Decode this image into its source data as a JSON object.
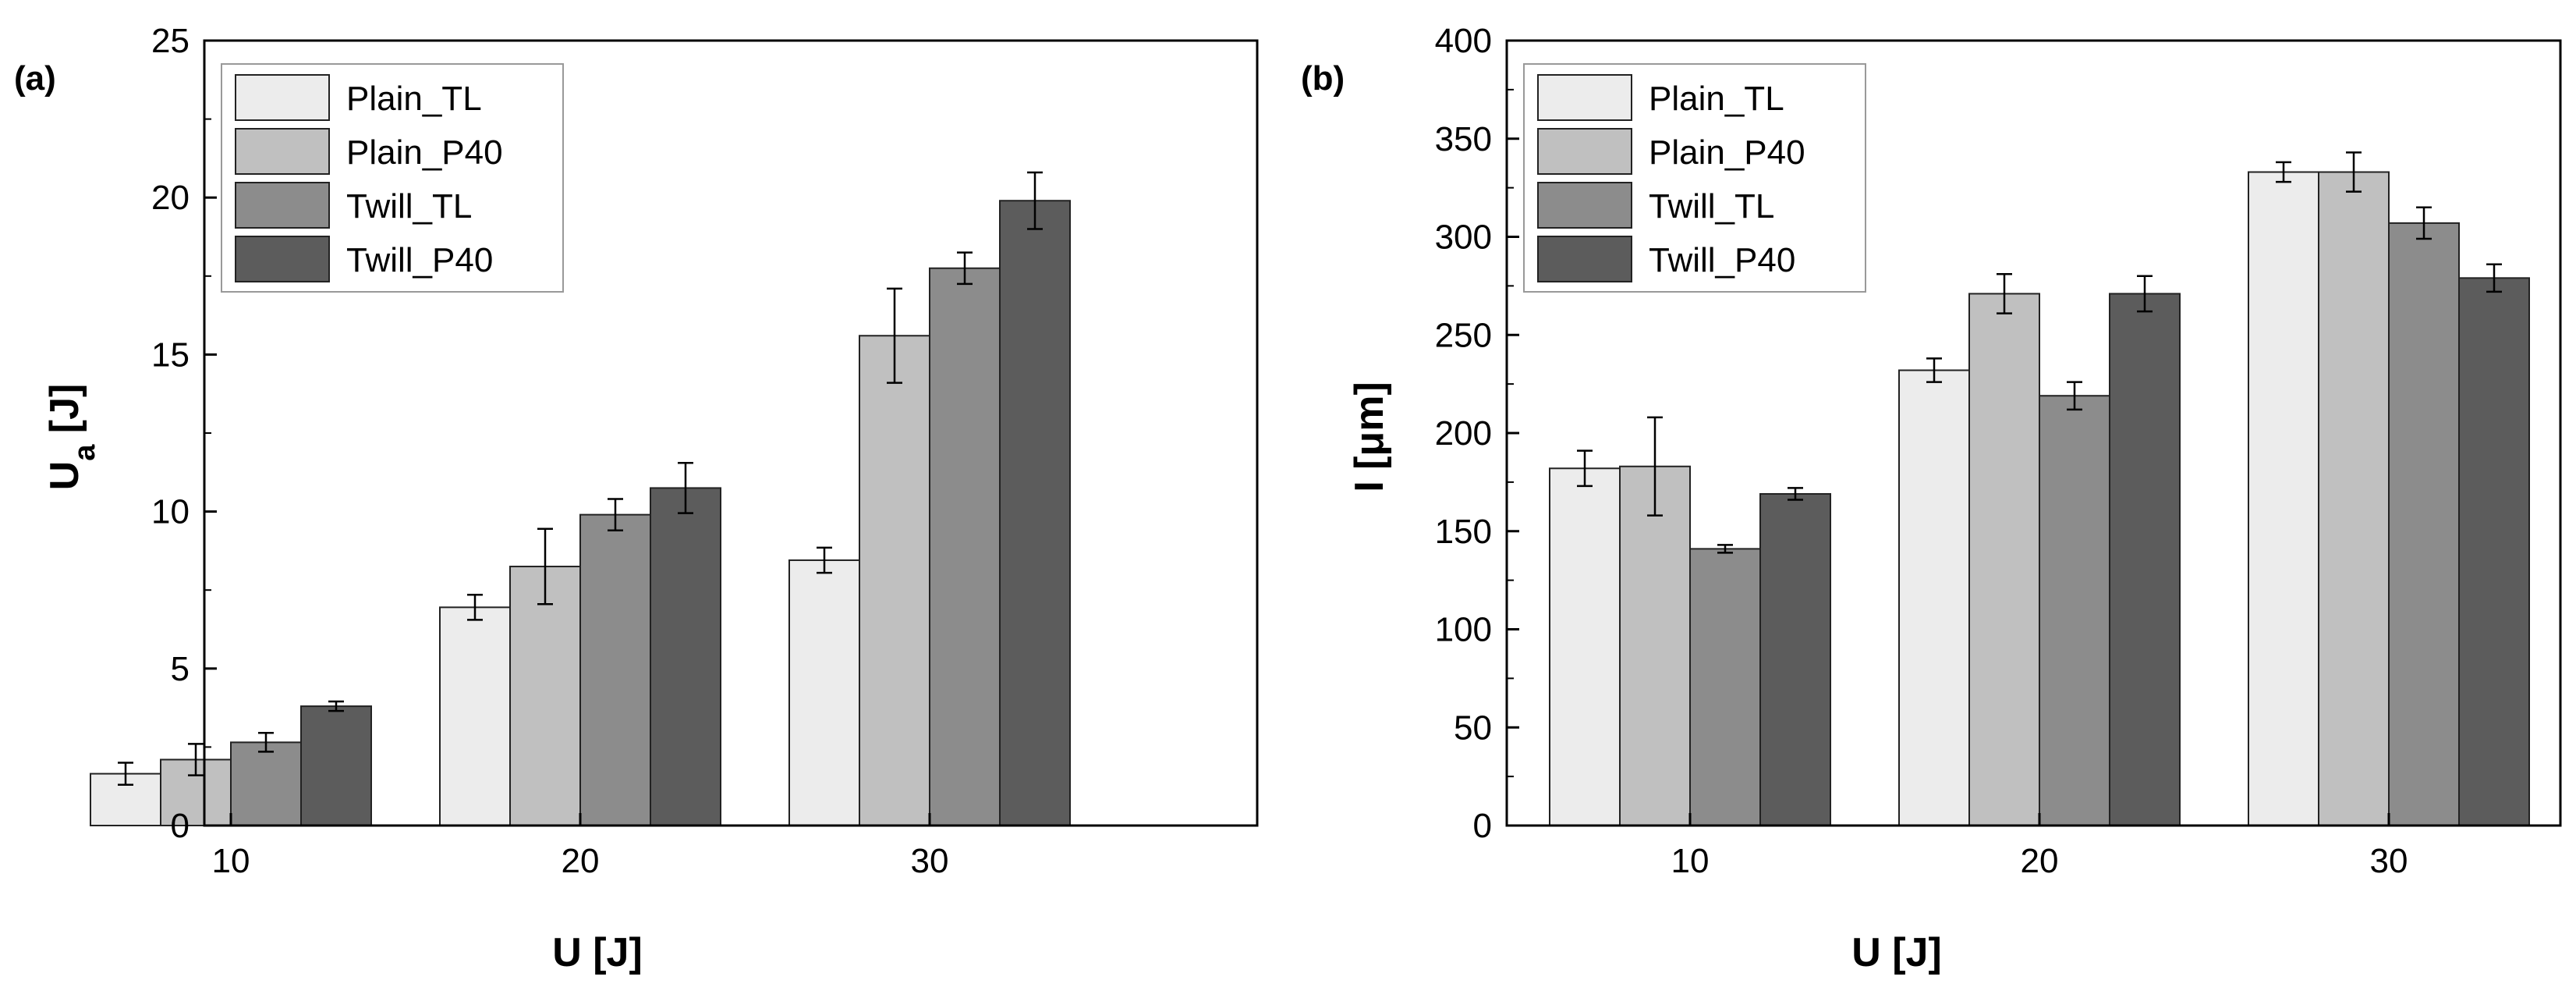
{
  "chart_data": [
    {
      "type": "bar",
      "panel_label": "(a)",
      "xlabel": "U [J]",
      "ylabel_main": "U",
      "ylabel_sub": "a",
      "ylabel_unit": " [J]",
      "categories": [
        "10",
        "20",
        "30"
      ],
      "ylim": [
        0,
        25
      ],
      "yticks": [
        0,
        5,
        10,
        15,
        20,
        25
      ],
      "series": [
        {
          "name": "Plain_TL",
          "color": "#ececec",
          "values": [
            1.65,
            6.95,
            8.45
          ],
          "errors": [
            0.35,
            0.4,
            0.4
          ]
        },
        {
          "name": "Plain_P40",
          "color": "#c0c0c0",
          "values": [
            2.1,
            8.25,
            15.6
          ],
          "errors": [
            0.5,
            1.2,
            1.5
          ]
        },
        {
          "name": "Twill_TL",
          "color": "#8c8c8c",
          "values": [
            2.65,
            9.9,
            17.75
          ],
          "errors": [
            0.3,
            0.5,
            0.5
          ]
        },
        {
          "name": "Twill_P40",
          "color": "#5c5c5c",
          "values": [
            3.8,
            10.75,
            19.9
          ],
          "errors": [
            0.15,
            0.8,
            0.9
          ]
        }
      ],
      "legend_position": "top-left",
      "grid": false
    },
    {
      "type": "bar",
      "panel_label": "(b)",
      "xlabel": "U [J]",
      "ylabel_main": "I [μm]",
      "ylabel_sub": "",
      "ylabel_unit": "",
      "categories": [
        "10",
        "20",
        "30"
      ],
      "ylim": [
        0,
        400
      ],
      "yticks": [
        0,
        50,
        100,
        150,
        200,
        250,
        300,
        350,
        400
      ],
      "series": [
        {
          "name": "Plain_TL",
          "color": "#ececec",
          "values": [
            182,
            232,
            333
          ],
          "errors": [
            9,
            6,
            5
          ]
        },
        {
          "name": "Plain_P40",
          "color": "#c0c0c0",
          "values": [
            183,
            271,
            333
          ],
          "errors": [
            25,
            10,
            10
          ]
        },
        {
          "name": "Twill_TL",
          "color": "#8c8c8c",
          "values": [
            141,
            219,
            307
          ],
          "errors": [
            2,
            7,
            8
          ]
        },
        {
          "name": "Twill_P40",
          "color": "#5c5c5c",
          "values": [
            169,
            271,
            279
          ],
          "errors": [
            3,
            9,
            7
          ]
        }
      ],
      "legend_position": "top-left",
      "grid": false
    }
  ]
}
